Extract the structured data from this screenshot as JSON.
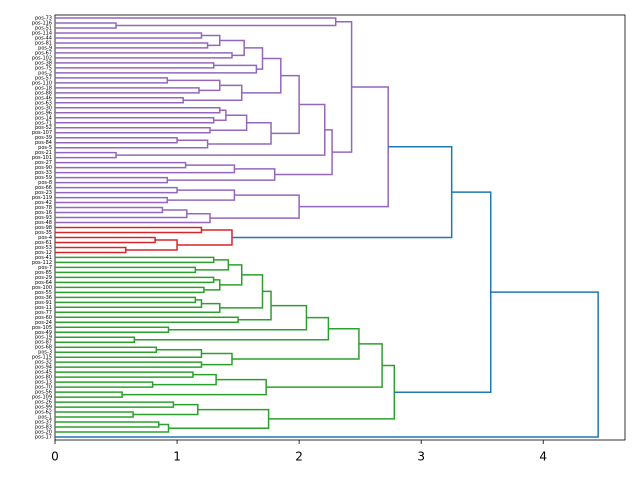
{
  "chart_data": {
    "type": "dendrogram",
    "orientation": "horizontal",
    "xlim": [
      0,
      4.67
    ],
    "xticks": [
      0,
      1,
      2,
      3,
      4
    ],
    "tree": [
      4.45,
      "#1f77b4",
      [
        3.57,
        "#1f77b4",
        [
          3.25,
          "#1f77b4",
          [
            2.73,
            "#9467bd",
            [
              2.43,
              "#9467bd",
              [
                2.3,
                "#9467bd",
                "pos-73",
                [
                  0.5,
                  "#9467bd",
                  "pos-116",
                  "pos-51"
                ]
              ],
              [
                2.27,
                "#9467bd",
                [
                  2.21,
                  "#9467bd",
                  [
                    2.0,
                    "#9467bd",
                    [
                      1.85,
                      "#9467bd",
                      [
                        1.7,
                        "#9467bd",
                        [
                          1.55,
                          "#9467bd",
                          [
                            1.35,
                            "#9467bd",
                            [
                              1.2,
                              "#9467bd",
                              "pos-114",
                              "pos-44"
                            ],
                            [
                              1.25,
                              "#9467bd",
                              "pos-81",
                              "pos-9"
                            ]
                          ],
                          [
                            1.45,
                            "#9467bd",
                            "pos-67",
                            "pos-102"
                          ]
                        ],
                        [
                          1.65,
                          "#9467bd",
                          [
                            1.3,
                            "#9467bd",
                            "pos-38",
                            "pos-75"
                          ],
                          "pos-2"
                        ]
                      ],
                      [
                        1.53,
                        "#9467bd",
                        [
                          1.35,
                          "#9467bd",
                          [
                            0.92,
                            "#9467bd",
                            "pos-57",
                            "pos-110"
                          ],
                          [
                            1.18,
                            "#9467bd",
                            "pos-18",
                            "pos-88"
                          ]
                        ],
                        [
                          1.05,
                          "#9467bd",
                          "pos-46",
                          "pos-63"
                        ]
                      ]
                    ],
                    [
                      1.77,
                      "#9467bd",
                      [
                        1.57,
                        "#9467bd",
                        [
                          1.4,
                          "#9467bd",
                          [
                            1.35,
                            "#9467bd",
                            "pos-30",
                            "pos-96"
                          ],
                          [
                            1.3,
                            "#9467bd",
                            "pos-14",
                            "pos-71"
                          ]
                        ],
                        [
                          1.27,
                          "#9467bd",
                          "pos-52",
                          "pos-107"
                        ]
                      ],
                      [
                        1.25,
                        "#9467bd",
                        [
                          1.0,
                          "#9467bd",
                          "pos-39",
                          "pos-84"
                        ],
                        "pos-5"
                      ]
                    ]
                  ],
                  [
                    0.5,
                    "#9467bd",
                    "pos-21",
                    "pos-101"
                  ]
                ],
                [
                  1.8,
                  "#9467bd",
                  [
                    1.47,
                    "#9467bd",
                    [
                      1.07,
                      "#9467bd",
                      "pos-27",
                      "pos-90"
                    ],
                    "pos-33"
                  ],
                  [
                    0.92,
                    "#9467bd",
                    "pos-59",
                    "pos-8"
                  ]
                ]
              ]
            ],
            [
              2.0,
              "#9467bd",
              [
                1.47,
                "#9467bd",
                [
                  1.0,
                  "#9467bd",
                  "pos-66",
                  "pos-23"
                ],
                [
                  0.92,
                  "#9467bd",
                  "pos-119",
                  "pos-42"
                ]
              ],
              [
                1.27,
                "#9467bd",
                [
                  1.08,
                  "#9467bd",
                  [
                    0.88,
                    "#9467bd",
                    "pos-78",
                    "pos-16"
                  ],
                  "pos-93"
                ],
                "pos-48"
              ]
            ]
          ],
          [
            1.45,
            "#d62728",
            [
              1.2,
              "#d62728",
              "pos-98",
              "pos-35"
            ],
            [
              1.0,
              "#d62728",
              [
                0.82,
                "#d62728",
                "pos-4",
                "pos-61"
              ],
              [
                0.58,
                "#d62728",
                "pos-53",
                "pos-12"
              ]
            ]
          ]
        ],
        [
          2.78,
          "#2ca02c",
          [
            2.68,
            "#2ca02c",
            [
              2.49,
              "#2ca02c",
              [
                2.24,
                "#2ca02c",
                [
                  2.06,
                  "#2ca02c",
                  [
                    1.77,
                    "#2ca02c",
                    [
                      1.7,
                      "#2ca02c",
                      [
                        1.53,
                        "#2ca02c",
                        [
                          1.42,
                          "#2ca02c",
                          [
                            1.3,
                            "#2ca02c",
                            "pos-41",
                            "pos-112"
                          ],
                          [
                            1.15,
                            "#2ca02c",
                            "pos-7",
                            "pos-85"
                          ]
                        ],
                        [
                          1.35,
                          "#2ca02c",
                          [
                            1.3,
                            "#2ca02c",
                            "pos-29",
                            "pos-64"
                          ],
                          [
                            1.22,
                            "#2ca02c",
                            "pos-100",
                            "pos-55"
                          ]
                        ]
                      ],
                      [
                        1.35,
                        "#2ca02c",
                        [
                          1.2,
                          "#2ca02c",
                          [
                            1.15,
                            "#2ca02c",
                            "pos-36",
                            "pos-91"
                          ],
                          "pos-11"
                        ],
                        "pos-77"
                      ]
                    ],
                    [
                      1.5,
                      "#2ca02c",
                      "pos-60",
                      "pos-24"
                    ]
                  ],
                  [
                    0.93,
                    "#2ca02c",
                    "pos-105",
                    "pos-49"
                  ]
                ],
                [
                  0.65,
                  "#2ca02c",
                  "pos-19",
                  "pos-87"
                ]
              ],
              [
                1.45,
                "#2ca02c",
                [
                  1.2,
                  "#2ca02c",
                  [
                    0.83,
                    "#2ca02c",
                    "pos-68",
                    "pos-3"
                  ],
                  "pos-115"
                ],
                [
                  1.2,
                  "#2ca02c",
                  "pos-32",
                  "pos-94"
                ]
              ]
            ],
            [
              1.73,
              "#2ca02c",
              [
                1.32,
                "#2ca02c",
                [
                  1.13,
                  "#2ca02c",
                  "pos-45",
                  "pos-80"
                ],
                [
                  0.8,
                  "#2ca02c",
                  "pos-13",
                  "pos-70"
                ]
              ],
              [
                0.55,
                "#2ca02c",
                "pos-56",
                "pos-109"
              ]
            ]
          ],
          [
            1.75,
            "#2ca02c",
            [
              1.17,
              "#2ca02c",
              [
                0.97,
                "#2ca02c",
                "pos-26",
                "pos-99"
              ],
              [
                0.64,
                "#2ca02c",
                "pos-62",
                "pos-1"
              ]
            ],
            [
              0.93,
              "#2ca02c",
              [
                0.85,
                "#2ca02c",
                "pos-37",
                "pos-83"
              ],
              "pos-20"
            ]
          ]
        ]
      ],
      "pos-17"
    ]
  }
}
